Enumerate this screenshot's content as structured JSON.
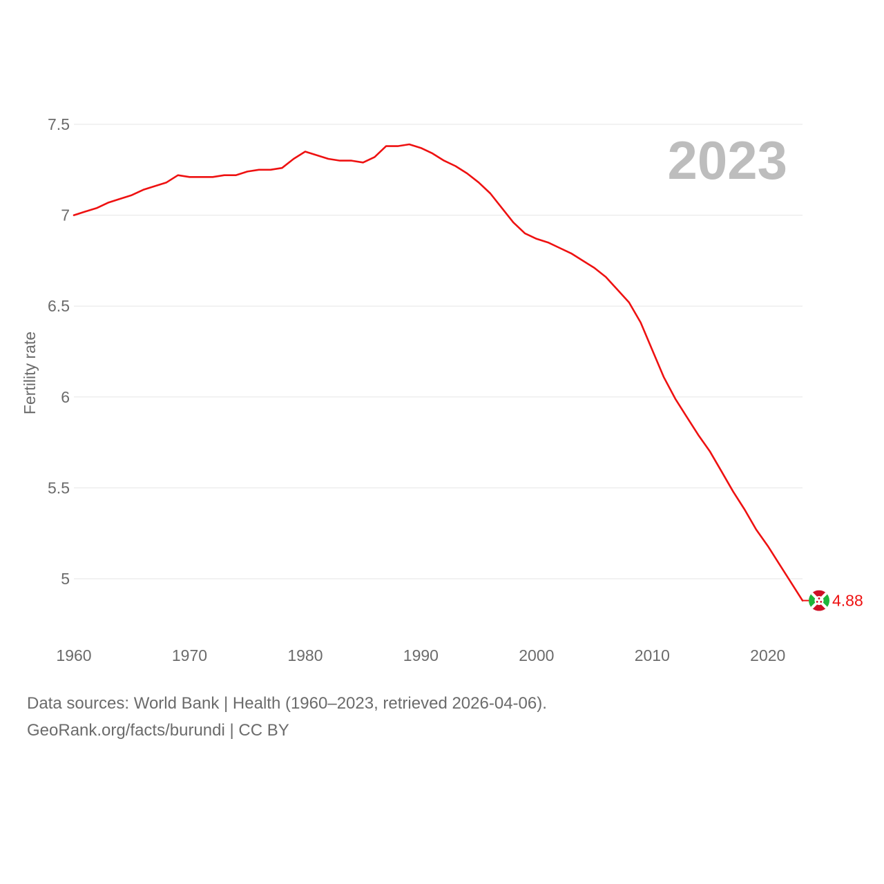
{
  "colors": {
    "series": "#ee1111",
    "grid": "#e6e6e6",
    "text": "#6b6b6b",
    "year_label": "#bdbdbd",
    "flag_red": "#ce1126",
    "flag_green": "#1eb53a",
    "flag_white": "#ffffff"
  },
  "chart_data": {
    "type": "line",
    "title": "",
    "xlabel": "",
    "ylabel": "Fertility rate",
    "xlim": [
      1960,
      2023
    ],
    "ylim": [
      4.72,
      7.62
    ],
    "yticks": [
      5,
      5.5,
      6,
      6.5,
      7,
      7.5
    ],
    "ytick_labels": [
      "5",
      "5.5",
      "6",
      "6.5",
      "7",
      "7.5"
    ],
    "xticks": [
      1960,
      1970,
      1980,
      1990,
      2000,
      2010,
      2020
    ],
    "xtick_labels": [
      "1960",
      "1970",
      "1980",
      "1990",
      "2000",
      "2010",
      "2020"
    ],
    "grid": true,
    "year_label": "2023",
    "end_value_label": "4.88",
    "end_marker_icon": "burundi-flag-icon",
    "series": [
      {
        "name": "Burundi",
        "x": [
          1960,
          1961,
          1962,
          1963,
          1964,
          1965,
          1966,
          1967,
          1968,
          1969,
          1970,
          1971,
          1972,
          1973,
          1974,
          1975,
          1976,
          1977,
          1978,
          1979,
          1980,
          1981,
          1982,
          1983,
          1984,
          1985,
          1986,
          1987,
          1988,
          1989,
          1990,
          1991,
          1992,
          1993,
          1994,
          1995,
          1996,
          1997,
          1998,
          1999,
          2000,
          2001,
          2002,
          2003,
          2004,
          2005,
          2006,
          2007,
          2008,
          2009,
          2010,
          2011,
          2012,
          2013,
          2014,
          2015,
          2016,
          2017,
          2018,
          2019,
          2020,
          2021,
          2022,
          2023
        ],
        "values": [
          7.0,
          7.02,
          7.04,
          7.07,
          7.09,
          7.11,
          7.14,
          7.16,
          7.18,
          7.22,
          7.21,
          7.21,
          7.21,
          7.22,
          7.22,
          7.24,
          7.25,
          7.25,
          7.26,
          7.31,
          7.35,
          7.33,
          7.31,
          7.3,
          7.3,
          7.29,
          7.32,
          7.38,
          7.38,
          7.39,
          7.37,
          7.34,
          7.3,
          7.27,
          7.23,
          7.18,
          7.12,
          7.04,
          6.96,
          6.9,
          6.87,
          6.85,
          6.82,
          6.79,
          6.75,
          6.71,
          6.66,
          6.59,
          6.52,
          6.41,
          6.26,
          6.11,
          5.99,
          5.89,
          5.79,
          5.7,
          5.59,
          5.48,
          5.38,
          5.27,
          5.18,
          5.08,
          4.98,
          4.88
        ]
      }
    ]
  },
  "footer": {
    "sources": "Data sources: World Bank | Health (1960–2023, retrieved 2026-04-06).",
    "attribution": "GeoRank.org/facts/burundi | CC BY"
  }
}
